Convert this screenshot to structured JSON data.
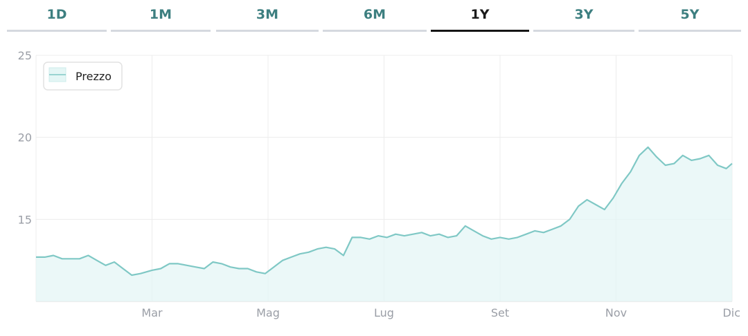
{
  "tabs": [
    {
      "label": "1D"
    },
    {
      "label": "1M"
    },
    {
      "label": "3M"
    },
    {
      "label": "6M"
    },
    {
      "label": "1Y",
      "active": true
    },
    {
      "label": "3Y"
    },
    {
      "label": "5Y"
    }
  ],
  "colors": {
    "line": "#7fc8c5",
    "fill": "#e4f6f5",
    "grid": "#ececec",
    "tab_text": "#3d7f80",
    "tab_active": "#151515"
  },
  "chart_data": {
    "type": "area",
    "legend": [
      "Prezzo"
    ],
    "legend_position": "top-left",
    "grid": true,
    "ylim": [
      10,
      25
    ],
    "yticks": [
      "15",
      "20",
      "25"
    ],
    "xlim": [
      0,
      12
    ],
    "xticks": [
      {
        "x": 2,
        "label": "Mar"
      },
      {
        "x": 4,
        "label": "Mag"
      },
      {
        "x": 6,
        "label": "Lug"
      },
      {
        "x": 8,
        "label": "Set"
      },
      {
        "x": 10,
        "label": "Nov"
      },
      {
        "x": 12,
        "label": "Dic"
      }
    ],
    "series": [
      {
        "name": "Prezzo",
        "points": [
          [
            0.0,
            12.7
          ],
          [
            0.15,
            12.7
          ],
          [
            0.3,
            12.8
          ],
          [
            0.45,
            12.6
          ],
          [
            0.6,
            12.6
          ],
          [
            0.75,
            12.6
          ],
          [
            0.9,
            12.8
          ],
          [
            1.05,
            12.5
          ],
          [
            1.2,
            12.2
          ],
          [
            1.35,
            12.4
          ],
          [
            1.5,
            12.0
          ],
          [
            1.65,
            11.6
          ],
          [
            1.8,
            11.7
          ],
          [
            2.0,
            11.9
          ],
          [
            2.15,
            12.0
          ],
          [
            2.3,
            12.3
          ],
          [
            2.45,
            12.3
          ],
          [
            2.6,
            12.2
          ],
          [
            2.75,
            12.1
          ],
          [
            2.9,
            12.0
          ],
          [
            3.05,
            12.4
          ],
          [
            3.2,
            12.3
          ],
          [
            3.35,
            12.1
          ],
          [
            3.5,
            12.0
          ],
          [
            3.65,
            12.0
          ],
          [
            3.8,
            11.8
          ],
          [
            3.95,
            11.7
          ],
          [
            4.1,
            12.1
          ],
          [
            4.25,
            12.5
          ],
          [
            4.4,
            12.7
          ],
          [
            4.55,
            12.9
          ],
          [
            4.7,
            13.0
          ],
          [
            4.85,
            13.2
          ],
          [
            5.0,
            13.3
          ],
          [
            5.15,
            13.2
          ],
          [
            5.3,
            12.8
          ],
          [
            5.45,
            13.9
          ],
          [
            5.6,
            13.9
          ],
          [
            5.75,
            13.8
          ],
          [
            5.9,
            14.0
          ],
          [
            6.05,
            13.9
          ],
          [
            6.2,
            14.1
          ],
          [
            6.35,
            14.0
          ],
          [
            6.5,
            14.1
          ],
          [
            6.65,
            14.2
          ],
          [
            6.8,
            14.0
          ],
          [
            6.95,
            14.1
          ],
          [
            7.1,
            13.9
          ],
          [
            7.25,
            14.0
          ],
          [
            7.4,
            14.6
          ],
          [
            7.55,
            14.3
          ],
          [
            7.7,
            14.0
          ],
          [
            7.85,
            13.8
          ],
          [
            8.0,
            13.9
          ],
          [
            8.15,
            13.8
          ],
          [
            8.3,
            13.9
          ],
          [
            8.45,
            14.1
          ],
          [
            8.6,
            14.3
          ],
          [
            8.75,
            14.2
          ],
          [
            8.9,
            14.4
          ],
          [
            9.05,
            14.6
          ],
          [
            9.2,
            15.0
          ],
          [
            9.35,
            15.8
          ],
          [
            9.5,
            16.2
          ],
          [
            9.65,
            15.9
          ],
          [
            9.8,
            15.6
          ],
          [
            9.95,
            16.3
          ],
          [
            10.1,
            17.2
          ],
          [
            10.25,
            17.9
          ],
          [
            10.4,
            18.9
          ],
          [
            10.55,
            19.4
          ],
          [
            10.7,
            18.8
          ],
          [
            10.85,
            18.3
          ],
          [
            11.0,
            18.4
          ],
          [
            11.15,
            18.9
          ],
          [
            11.3,
            18.6
          ],
          [
            11.45,
            18.7
          ],
          [
            11.6,
            18.9
          ],
          [
            11.75,
            18.3
          ],
          [
            11.9,
            18.1
          ],
          [
            12.0,
            18.4
          ]
        ]
      }
    ]
  }
}
